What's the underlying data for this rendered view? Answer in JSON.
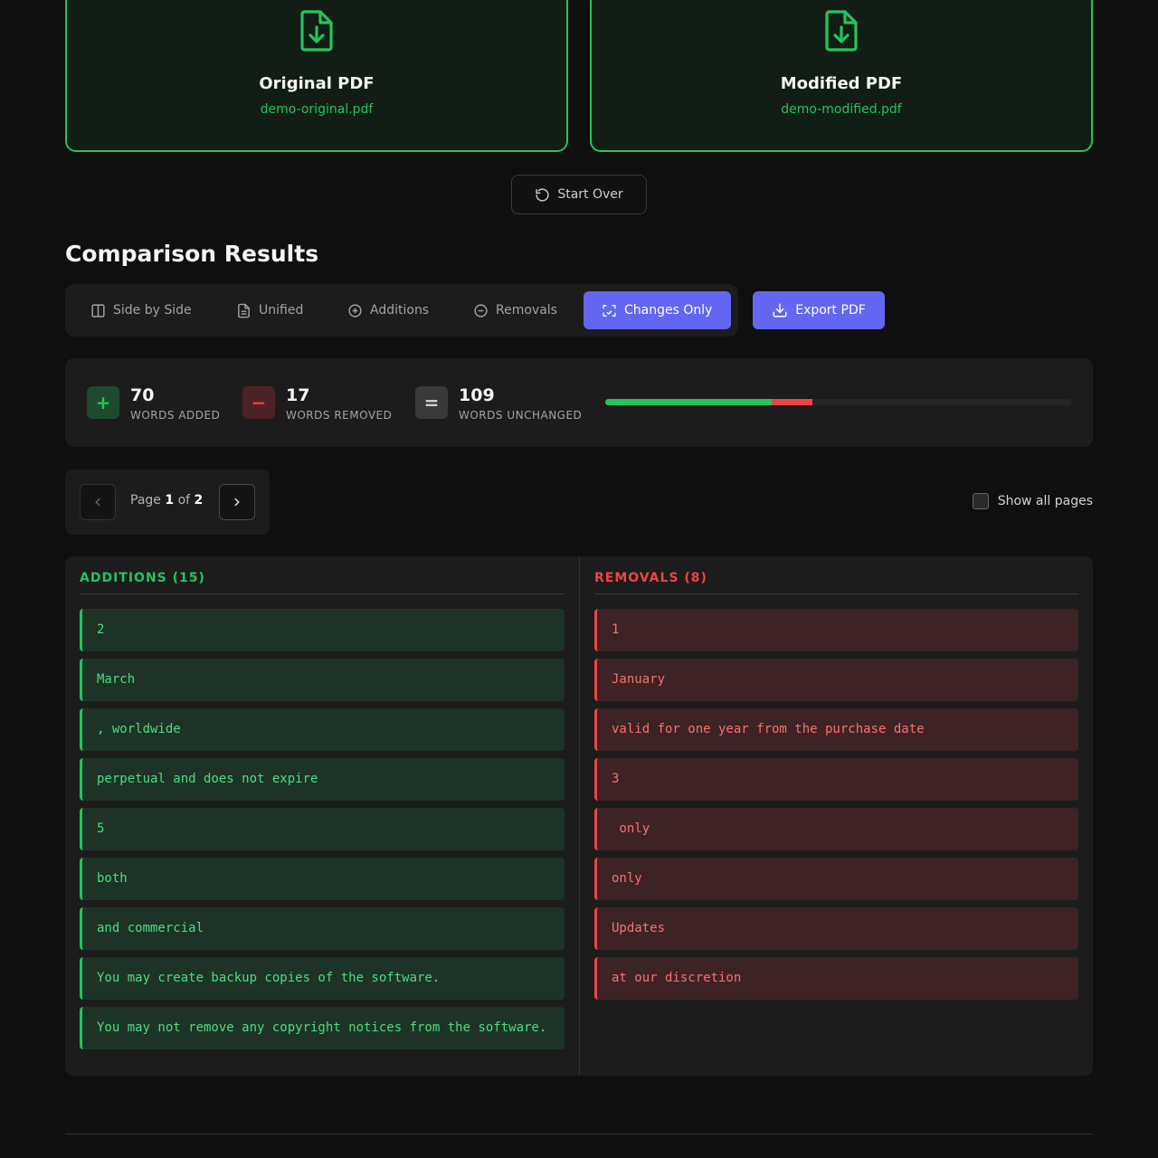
{
  "files": {
    "original": {
      "title": "Original PDF",
      "filename": "demo-original.pdf"
    },
    "modified": {
      "title": "Modified PDF",
      "filename": "demo-modified.pdf"
    }
  },
  "start_over_label": "Start Over",
  "section_title": "Comparison Results",
  "tabs": [
    {
      "label": "Side by Side",
      "icon": "columns-icon",
      "active": false
    },
    {
      "label": "Unified",
      "icon": "document-icon",
      "active": false
    },
    {
      "label": "Additions",
      "icon": "plus-circle-icon",
      "active": false
    },
    {
      "label": "Removals",
      "icon": "minus-circle-icon",
      "active": false
    },
    {
      "label": "Changes Only",
      "icon": "focus-diff-icon",
      "active": true
    }
  ],
  "export_label": "Export PDF",
  "stats": {
    "added": {
      "value": "70",
      "label": "WORDS ADDED",
      "symbol": "+"
    },
    "removed": {
      "value": "17",
      "label": "WORDS REMOVED",
      "symbol": "−"
    },
    "unchanged": {
      "value": "109",
      "label": "WORDS UNCHANGED",
      "symbol": "="
    },
    "bar": {
      "added_fraction": 0.357,
      "removed_fraction": 0.087
    }
  },
  "pager": {
    "prefix": "Page",
    "current": "1",
    "of": "of",
    "total": "2"
  },
  "show_all_pages_label": "Show all pages",
  "additions": {
    "heading": "ADDITIONS (15)",
    "items": [
      "2",
      "March",
      ", worldwide",
      "perpetual and does not expire",
      "5",
      "both",
      "and commercial",
      "You may create backup copies of the software.",
      "You may not remove any copyright notices from the software."
    ]
  },
  "removals": {
    "heading": "REMOVALS (8)",
    "items": [
      "1",
      "January",
      "valid for one year from the purchase date",
      "3",
      " only",
      "only",
      "Updates",
      "at our discretion"
    ]
  },
  "colors": {
    "accent": "#6366f1",
    "added": "#22c55e",
    "removed": "#ef4444"
  }
}
